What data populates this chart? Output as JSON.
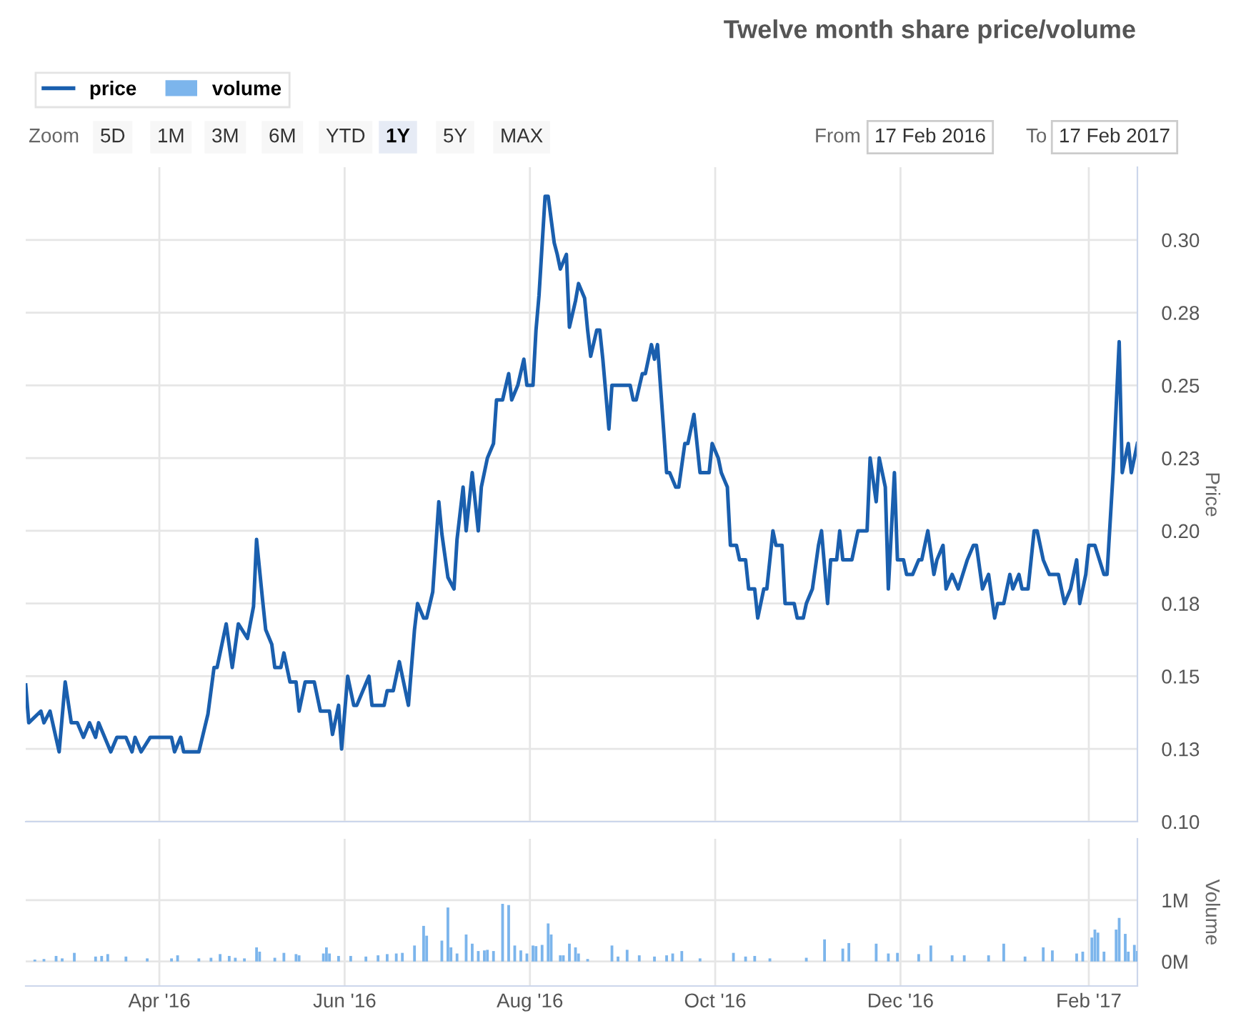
{
  "chart_data": [
    {
      "type": "line",
      "title": "Twelve month share price/volume",
      "ylabel": "Price",
      "legend": "top left",
      "grid": true,
      "tick_labels": "y",
      "annotations": [
        "Zoom",
        "5D",
        "1M",
        "3M",
        "6M",
        "YTD",
        "1Y",
        "5Y",
        "MAX",
        "From",
        "17 Feb 2016",
        "To",
        "17 Feb 2017"
      ],
      "xlim": [
        "2016-02-17",
        "2017-02-17"
      ],
      "xticks": [
        {
          "value": "2016-04-01",
          "label": null
        },
        {
          "value": "2016-06-01",
          "label": null
        },
        {
          "value": "2016-08-01",
          "label": null
        },
        {
          "value": "2016-10-01",
          "label": null
        },
        {
          "value": "2016-12-01",
          "label": null
        },
        {
          "value": "2017-02-01",
          "label": null
        }
      ],
      "ylim": [
        0.1,
        0.325
      ],
      "yticks": [
        {
          "value": 0.1,
          "label": "0.10"
        },
        {
          "value": 0.125,
          "label": "0.13"
        },
        {
          "value": 0.15,
          "label": "0.15"
        },
        {
          "value": 0.175,
          "label": "0.18"
        },
        {
          "value": 0.2,
          "label": "0.20"
        },
        {
          "value": 0.225,
          "label": "0.23"
        },
        {
          "value": 0.25,
          "label": "0.25"
        },
        {
          "value": 0.275,
          "label": "0.28"
        },
        {
          "value": 0.3,
          "label": "0.30"
        }
      ],
      "series": [
        {
          "name": "price",
          "color": "#1a5fae",
          "x": [
            "2016-02-17",
            "2016-02-18",
            "2016-02-22",
            "2016-02-23",
            "2016-02-25",
            "2016-02-28",
            "2016-03-01",
            "2016-03-03",
            "2016-03-05",
            "2016-03-07",
            "2016-03-09",
            "2016-03-11",
            "2016-03-12",
            "2016-03-16",
            "2016-03-18",
            "2016-03-21",
            "2016-03-23",
            "2016-03-24",
            "2016-03-26",
            "2016-03-29",
            "2016-04-05",
            "2016-04-06",
            "2016-04-08",
            "2016-04-09",
            "2016-04-14",
            "2016-04-17",
            "2016-04-19",
            "2016-04-20",
            "2016-04-22",
            "2016-04-23",
            "2016-04-25",
            "2016-04-27",
            "2016-04-30",
            "2016-05-02",
            "2016-05-03",
            "2016-05-05",
            "2016-05-06",
            "2016-05-08",
            "2016-05-09",
            "2016-05-11",
            "2016-05-12",
            "2016-05-14",
            "2016-05-16",
            "2016-05-17",
            "2016-05-19",
            "2016-05-22",
            "2016-05-24",
            "2016-05-27",
            "2016-05-28",
            "2016-05-30",
            "2016-05-31",
            "2016-06-02",
            "2016-06-04",
            "2016-06-05",
            "2016-06-09",
            "2016-06-10",
            "2016-06-14",
            "2016-06-15",
            "2016-06-17",
            "2016-06-19",
            "2016-06-20",
            "2016-06-22",
            "2016-06-24",
            "2016-06-25",
            "2016-06-27",
            "2016-06-28",
            "2016-06-30",
            "2016-07-02",
            "2016-07-03",
            "2016-07-05",
            "2016-07-07",
            "2016-07-08",
            "2016-07-10",
            "2016-07-11",
            "2016-07-13",
            "2016-07-15",
            "2016-07-16",
            "2016-07-18",
            "2016-07-20",
            "2016-07-21",
            "2016-07-23",
            "2016-07-25",
            "2016-07-26",
            "2016-07-28",
            "2016-07-30",
            "2016-07-31",
            "2016-08-02",
            "2016-08-03",
            "2016-08-04",
            "2016-08-06",
            "2016-08-07",
            "2016-08-09",
            "2016-08-10",
            "2016-08-11",
            "2016-08-13",
            "2016-08-14",
            "2016-08-16",
            "2016-08-17",
            "2016-08-19",
            "2016-08-20",
            "2016-08-21",
            "2016-08-23",
            "2016-08-24",
            "2016-08-25",
            "2016-08-27",
            "2016-08-28",
            "2016-09-03",
            "2016-09-04",
            "2016-09-05",
            "2016-09-07",
            "2016-09-08",
            "2016-09-10",
            "2016-09-11",
            "2016-09-12",
            "2016-09-14",
            "2016-09-15",
            "2016-09-16",
            "2016-09-18",
            "2016-09-19",
            "2016-09-21",
            "2016-09-22",
            "2016-09-24",
            "2016-09-25",
            "2016-09-26",
            "2016-09-29",
            "2016-09-30",
            "2016-10-02",
            "2016-10-03",
            "2016-10-05",
            "2016-10-06",
            "2016-10-08",
            "2016-10-09",
            "2016-10-11",
            "2016-10-12",
            "2016-10-14",
            "2016-10-15",
            "2016-10-17",
            "2016-10-18",
            "2016-10-20",
            "2016-10-21",
            "2016-10-23",
            "2016-10-24",
            "2016-10-27",
            "2016-10-28",
            "2016-10-30",
            "2016-10-31",
            "2016-11-02",
            "2016-11-04",
            "2016-11-05",
            "2016-11-07",
            "2016-11-08",
            "2016-11-10",
            "2016-11-11",
            "2016-11-12",
            "2016-11-15",
            "2016-11-17",
            "2016-11-20",
            "2016-11-21",
            "2016-11-23",
            "2016-11-24",
            "2016-11-26",
            "2016-11-27",
            "2016-11-29",
            "2016-11-30",
            "2016-12-02",
            "2016-12-03",
            "2016-12-05",
            "2016-12-07",
            "2016-12-08",
            "2016-12-10",
            "2016-12-12",
            "2016-12-13",
            "2016-12-15",
            "2016-12-16",
            "2016-12-18",
            "2016-12-20",
            "2016-12-23",
            "2016-12-25",
            "2016-12-26",
            "2016-12-28",
            "2016-12-30",
            "2017-01-01",
            "2017-01-02",
            "2017-01-04",
            "2017-01-06",
            "2017-01-07",
            "2017-01-09",
            "2017-01-10",
            "2017-01-12",
            "2017-01-14",
            "2017-01-15",
            "2017-01-17",
            "2017-01-19",
            "2017-01-22",
            "2017-01-24",
            "2017-01-26",
            "2017-01-28",
            "2017-01-29",
            "2017-01-31",
            "2017-02-01",
            "2017-02-03",
            "2017-02-06",
            "2017-02-07",
            "2017-02-09",
            "2017-02-11",
            "2017-02-12",
            "2017-02-14",
            "2017-02-15",
            "2017-02-17"
          ],
          "values": [
            0.147,
            0.134,
            0.138,
            0.134,
            0.138,
            0.124,
            0.148,
            0.134,
            0.134,
            0.129,
            0.134,
            0.129,
            0.134,
            0.124,
            0.129,
            0.129,
            0.124,
            0.129,
            0.124,
            0.129,
            0.129,
            0.124,
            0.129,
            0.124,
            0.124,
            0.137,
            0.153,
            0.153,
            0.163,
            0.168,
            0.153,
            0.168,
            0.163,
            0.174,
            0.197,
            0.176,
            0.166,
            0.161,
            0.153,
            0.153,
            0.158,
            0.148,
            0.148,
            0.138,
            0.148,
            0.148,
            0.138,
            0.138,
            0.13,
            0.14,
            0.125,
            0.15,
            0.14,
            0.14,
            0.15,
            0.14,
            0.14,
            0.145,
            0.145,
            0.155,
            0.15,
            0.14,
            0.166,
            0.175,
            0.17,
            0.17,
            0.179,
            0.21,
            0.199,
            0.184,
            0.18,
            0.197,
            0.215,
            0.2,
            0.22,
            0.2,
            0.215,
            0.225,
            0.23,
            0.245,
            0.245,
            0.254,
            0.245,
            0.25,
            0.259,
            0.25,
            0.25,
            0.269,
            0.281,
            0.315,
            0.315,
            0.299,
            0.295,
            0.29,
            0.295,
            0.27,
            0.279,
            0.285,
            0.28,
            0.269,
            0.26,
            0.269,
            0.269,
            0.259,
            0.235,
            0.25,
            0.25,
            0.245,
            0.245,
            0.254,
            0.254,
            0.264,
            0.259,
            0.264,
            0.235,
            0.22,
            0.22,
            0.215,
            0.215,
            0.23,
            0.23,
            0.24,
            0.23,
            0.22,
            0.22,
            0.23,
            0.225,
            0.22,
            0.215,
            0.195,
            0.195,
            0.19,
            0.19,
            0.18,
            0.18,
            0.17,
            0.18,
            0.18,
            0.2,
            0.195,
            0.195,
            0.175,
            0.175,
            0.17,
            0.17,
            0.175,
            0.18,
            0.195,
            0.2,
            0.175,
            0.19,
            0.19,
            0.2,
            0.19,
            0.19,
            0.2,
            0.2,
            0.225,
            0.21,
            0.225,
            0.215,
            0.18,
            0.22,
            0.19,
            0.19,
            0.185,
            0.185,
            0.19,
            0.19,
            0.2,
            0.185,
            0.19,
            0.195,
            0.18,
            0.185,
            0.18,
            0.19,
            0.195,
            0.195,
            0.18,
            0.185,
            0.17,
            0.175,
            0.175,
            0.185,
            0.18,
            0.185,
            0.18,
            0.18,
            0.2,
            0.2,
            0.19,
            0.185,
            0.185,
            0.175,
            0.18,
            0.19,
            0.175,
            0.185,
            0.195,
            0.195,
            0.185,
            0.185,
            0.22,
            0.265,
            0.22,
            0.23,
            0.22,
            0.23
          ]
        }
      ]
    },
    {
      "type": "bar",
      "ylabel": "Volume",
      "grid": true,
      "legend": "top left",
      "xlim": [
        "2016-02-17",
        "2017-02-17"
      ],
      "xticks": [
        {
          "value": "2016-04-01",
          "label": "Apr '16"
        },
        {
          "value": "2016-06-01",
          "label": "Jun '16"
        },
        {
          "value": "2016-08-01",
          "label": "Aug '16"
        },
        {
          "value": "2016-10-01",
          "label": "Oct '16"
        },
        {
          "value": "2016-12-01",
          "label": "Dec '16"
        },
        {
          "value": "2017-02-01",
          "label": "Feb '17"
        }
      ],
      "ylim": [
        -400000,
        2000000
      ],
      "yticks": [
        {
          "value": 0,
          "label": "0M"
        },
        {
          "value": 1000000,
          "label": "1M"
        }
      ],
      "series": [
        {
          "name": "volume",
          "color": "#7cb5ec",
          "x": [
            "2016-02-20",
            "2016-02-23",
            "2016-02-27",
            "2016-02-29",
            "2016-03-04",
            "2016-03-11",
            "2016-03-13",
            "2016-03-15",
            "2016-03-21",
            "2016-03-28",
            "2016-04-05",
            "2016-04-07",
            "2016-04-14",
            "2016-04-18",
            "2016-04-21",
            "2016-04-24",
            "2016-04-26",
            "2016-04-29",
            "2016-05-03",
            "2016-05-04",
            "2016-05-09",
            "2016-05-12",
            "2016-05-16",
            "2016-05-17",
            "2016-05-25",
            "2016-05-26",
            "2016-05-27",
            "2016-05-30",
            "2016-06-03",
            "2016-06-08",
            "2016-06-12",
            "2016-06-15",
            "2016-06-18",
            "2016-06-20",
            "2016-06-24",
            "2016-06-27",
            "2016-06-28",
            "2016-07-03",
            "2016-07-05",
            "2016-07-06",
            "2016-07-08",
            "2016-07-11",
            "2016-07-13",
            "2016-07-15",
            "2016-07-17",
            "2016-07-18",
            "2016-07-20",
            "2016-07-23",
            "2016-07-25",
            "2016-07-27",
            "2016-07-29",
            "2016-07-31",
            "2016-08-02",
            "2016-08-03",
            "2016-08-05",
            "2016-08-07",
            "2016-08-08",
            "2016-08-11",
            "2016-08-12",
            "2016-08-14",
            "2016-08-16",
            "2016-08-17",
            "2016-08-20",
            "2016-08-28",
            "2016-08-30",
            "2016-09-02",
            "2016-09-06",
            "2016-09-11",
            "2016-09-15",
            "2016-09-17",
            "2016-09-20",
            "2016-09-26",
            "2016-10-07",
            "2016-10-11",
            "2016-10-14",
            "2016-10-19",
            "2016-10-31",
            "2016-11-06",
            "2016-11-12",
            "2016-11-14",
            "2016-11-23",
            "2016-11-27",
            "2016-11-30",
            "2016-12-07",
            "2016-12-11",
            "2016-12-18",
            "2016-12-22",
            "2016-12-30",
            "2017-01-04",
            "2017-01-11",
            "2017-01-17",
            "2017-01-20",
            "2017-01-28",
            "2017-01-30",
            "2017-02-02",
            "2017-02-03",
            "2017-02-04",
            "2017-02-06",
            "2017-02-10",
            "2017-02-11",
            "2017-02-13",
            "2017-02-14",
            "2017-02-16",
            "2017-02-17"
          ],
          "values": [
            30000,
            40000,
            90000,
            50000,
            140000,
            80000,
            90000,
            120000,
            80000,
            50000,
            50000,
            100000,
            50000,
            60000,
            120000,
            90000,
            60000,
            50000,
            230000,
            160000,
            60000,
            140000,
            120000,
            100000,
            130000,
            230000,
            130000,
            90000,
            90000,
            80000,
            100000,
            120000,
            130000,
            140000,
            260000,
            580000,
            420000,
            340000,
            880000,
            230000,
            130000,
            440000,
            290000,
            170000,
            180000,
            190000,
            170000,
            940000,
            920000,
            260000,
            180000,
            130000,
            260000,
            250000,
            270000,
            620000,
            440000,
            100000,
            100000,
            290000,
            230000,
            130000,
            40000,
            260000,
            80000,
            190000,
            100000,
            80000,
            100000,
            130000,
            170000,
            50000,
            140000,
            80000,
            90000,
            50000,
            60000,
            360000,
            210000,
            300000,
            290000,
            130000,
            140000,
            120000,
            260000,
            100000,
            100000,
            100000,
            290000,
            80000,
            230000,
            180000,
            130000,
            160000,
            390000,
            520000,
            470000,
            160000,
            520000,
            710000,
            450000,
            160000,
            270000,
            170000
          ]
        }
      ]
    }
  ]
}
